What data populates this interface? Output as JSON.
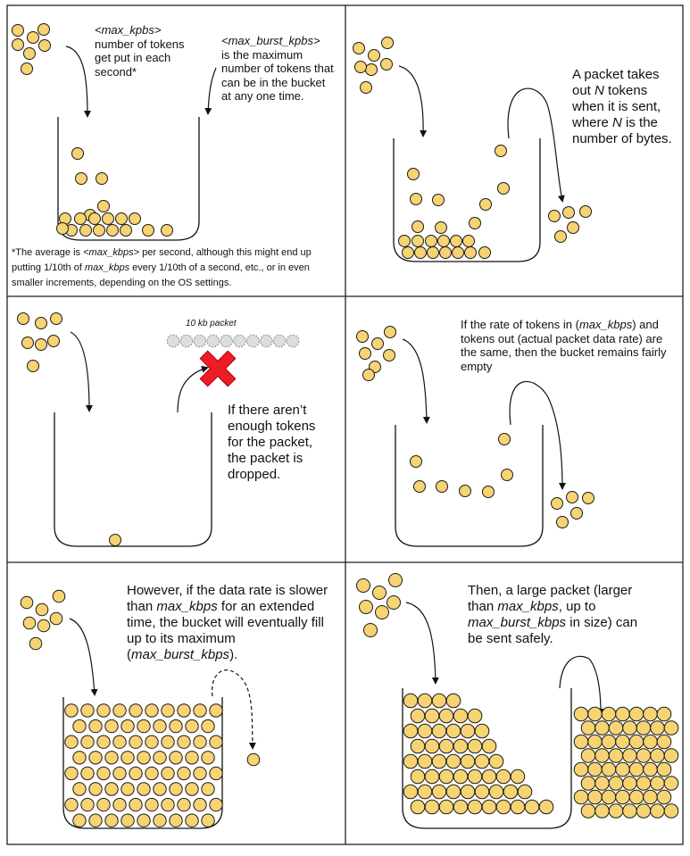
{
  "colors": {
    "token_fill": "#f6d373",
    "token_stroke": "#1a1a1a",
    "packet_fill": "#dddddd",
    "cross": "#ee1c25",
    "border": "#222222"
  },
  "panels": {
    "p1": {
      "rate_var": "<max_kpbs>",
      "rate_rest": "number of tokens get put in each second*",
      "burst_var": "<max_burst_kpbs>",
      "burst_rest": "is the maximum number of tokens that can be in the bucket at any one time.",
      "foot_a": "*The average is ",
      "foot_var1": "<max_kbps>",
      "foot_b": " per second, although this might end up putting 1/10th of ",
      "foot_var2": "max_kbps",
      "foot_c": " every 1/10th of a second, etc., or in even smaller increments, depending on the OS settings."
    },
    "p2": {
      "a": "A packet takes out ",
      "n1": "N",
      "b": " tokens when it is sent, where ",
      "n2": "N",
      "c": " is the number of bytes."
    },
    "p3": {
      "packet_label": "10 kb packet",
      "caption": "If there aren’t enough tokens for the packet, the packet is dropped."
    },
    "p4": {
      "a": "If the rate of tokens in (",
      "var": "max_kbps",
      "b": ") and tokens out (actual packet data rate) are the same, then the bucket remains fairly empty"
    },
    "p5": {
      "a": "However, if the data rate is slower than ",
      "var1": "max_kbps",
      "b": " for an extended time, the bucket will eventually fill up to its maximum (",
      "var2": "max_burst_kbps",
      "c": ")."
    },
    "p6": {
      "a": "Then, a large packet (larger than ",
      "var1": "max_kbps",
      "b": ", up to ",
      "var2": "max_burst_kbps",
      "c": " in size) can be sent safely."
    }
  }
}
